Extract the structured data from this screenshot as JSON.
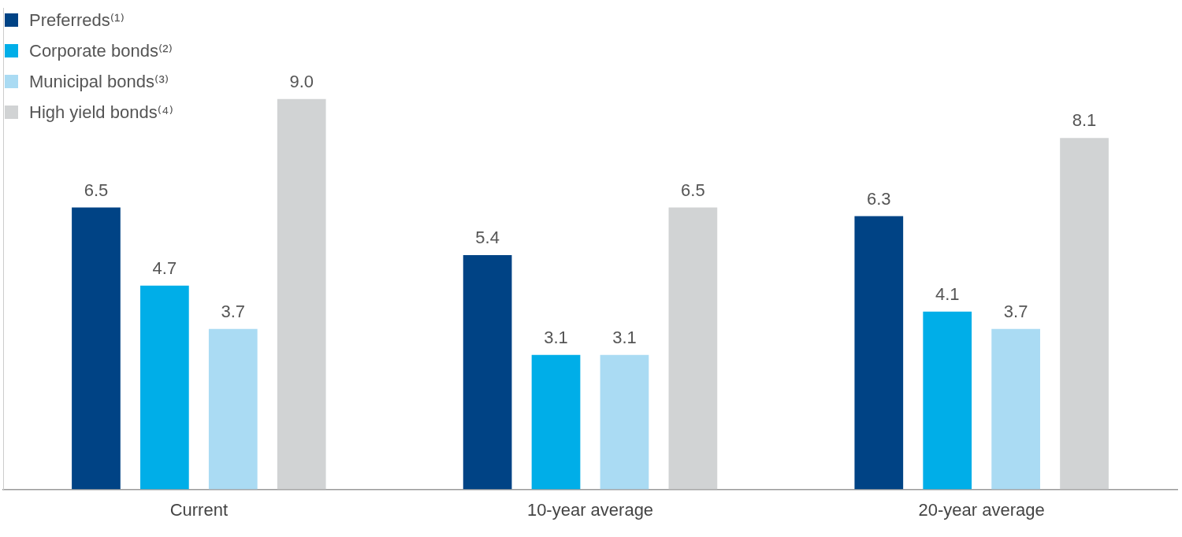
{
  "chart_data": {
    "type": "bar",
    "categories": [
      "Current",
      "10-year average",
      "20-year average"
    ],
    "series": [
      {
        "name": "Preferreds⁽¹⁾",
        "color": "#004385",
        "values": [
          6.5,
          5.4,
          6.3
        ]
      },
      {
        "name": "Corporate bonds⁽²⁾",
        "color": "#00aee8",
        "values": [
          4.7,
          3.1,
          4.1
        ]
      },
      {
        "name": "Municipal bonds⁽³⁾",
        "color": "#aadbf3",
        "values": [
          3.7,
          3.1,
          3.7
        ]
      },
      {
        "name": "High yield bonds⁽⁴⁾",
        "color": "#d1d3d4",
        "values": [
          9.0,
          6.5,
          8.1
        ],
        "value_labels": [
          "9.0",
          "6.5",
          "8.1"
        ]
      }
    ],
    "ylim": [
      0,
      11.1
    ],
    "yticks": [],
    "grid": false,
    "legend": "upper left",
    "data_labels": true,
    "tick_labels": "x"
  }
}
